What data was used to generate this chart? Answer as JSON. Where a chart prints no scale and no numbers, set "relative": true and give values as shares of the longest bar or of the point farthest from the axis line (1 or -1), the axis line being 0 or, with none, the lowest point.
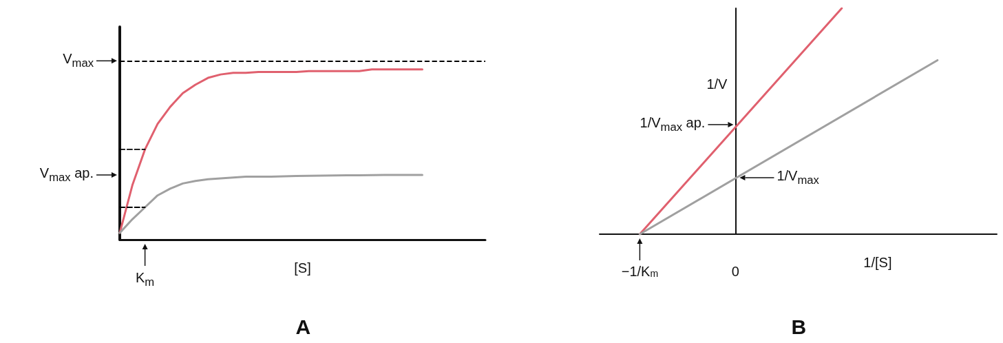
{
  "chart_data": [
    {
      "type": "line",
      "title": "A",
      "xlabel": "[S]",
      "relative": true,
      "grid": false,
      "marker": "none",
      "categories": [
        null,
        null,
        null,
        null,
        null,
        null,
        null,
        null,
        null,
        null,
        null,
        null,
        null,
        null,
        null,
        null,
        null,
        null,
        null,
        null,
        null,
        null,
        null,
        null,
        null,
        null,
        null,
        null,
        null,
        null
      ],
      "series": [
        {
          "color": "#e0606e",
          "values": [
            0.04,
            0.32,
            0.53,
            0.68,
            0.78,
            0.86,
            0.91,
            0.95,
            0.97,
            0.98,
            0.98,
            0.985,
            0.985,
            0.985,
            0.985,
            0.99,
            0.99,
            0.99,
            0.99,
            0.99,
            1,
            1,
            1,
            1,
            1,
            null,
            null,
            null,
            null,
            null
          ]
        },
        {
          "color": "#a0a0a0",
          "values": [
            0.04,
            0.12,
            0.19,
            0.26,
            0.3,
            0.33,
            0.345,
            0.355,
            0.36,
            0.365,
            0.37,
            0.37,
            0.37,
            0.372,
            0.374,
            0.375,
            0.376,
            0.377,
            0.378,
            0.378,
            0.379,
            0.38,
            0.38,
            0.38,
            0.38,
            null,
            null,
            null,
            null,
            null
          ]
        },
        {
          "color": "#000000",
          "line_style": "dashed",
          "values": [
            0.53,
            0.53,
            0.53,
            null,
            null,
            null,
            null,
            null,
            null,
            null,
            null,
            null,
            null,
            null,
            null,
            null,
            null,
            null,
            null,
            null,
            null,
            null,
            null,
            null,
            null,
            null,
            null,
            null,
            null,
            null
          ]
        },
        {
          "color": "#000000",
          "line_style": "dashed",
          "values": [
            0.19,
            0.19,
            0.19,
            null,
            null,
            null,
            null,
            null,
            null,
            null,
            null,
            null,
            null,
            null,
            null,
            null,
            null,
            null,
            null,
            null,
            null,
            null,
            null,
            null,
            null,
            null,
            null,
            null,
            null,
            null
          ]
        }
      ],
      "ref_lines": [
        {
          "axis": "y",
          "value": 1.05,
          "label": "V$_{max}$",
          "color": "#000000",
          "line_style": "dashed"
        }
      ],
      "annotations": [
        "V$_{max}$ ap.",
        "K$_{m}$"
      ]
    },
    {
      "type": "line",
      "title": "B",
      "xlabel": "1/[S]",
      "ylabel": "1/V",
      "relative": true,
      "marker": "none",
      "xlim": [
        -1.42,
        2.73
      ],
      "xticks": [
        {
          "value": -1,
          "label": "−1/K$_{m}$"
        },
        0
      ],
      "series": [
        {
          "color": "#e0606e",
          "x": [
            -1,
            1.11
          ],
          "values": [
            0,
            1
          ]
        },
        {
          "color": "#a0a0a0",
          "x": [
            -1,
            2.11
          ],
          "values": [
            0,
            0.77
          ]
        }
      ],
      "annotations": [
        {
          "text": "1/V$_{max}$ ap.",
          "x": 0,
          "y": 0.485
        },
        {
          "text": "1/V$_{max}$",
          "x": 0,
          "y": 0.25
        }
      ]
    }
  ]
}
